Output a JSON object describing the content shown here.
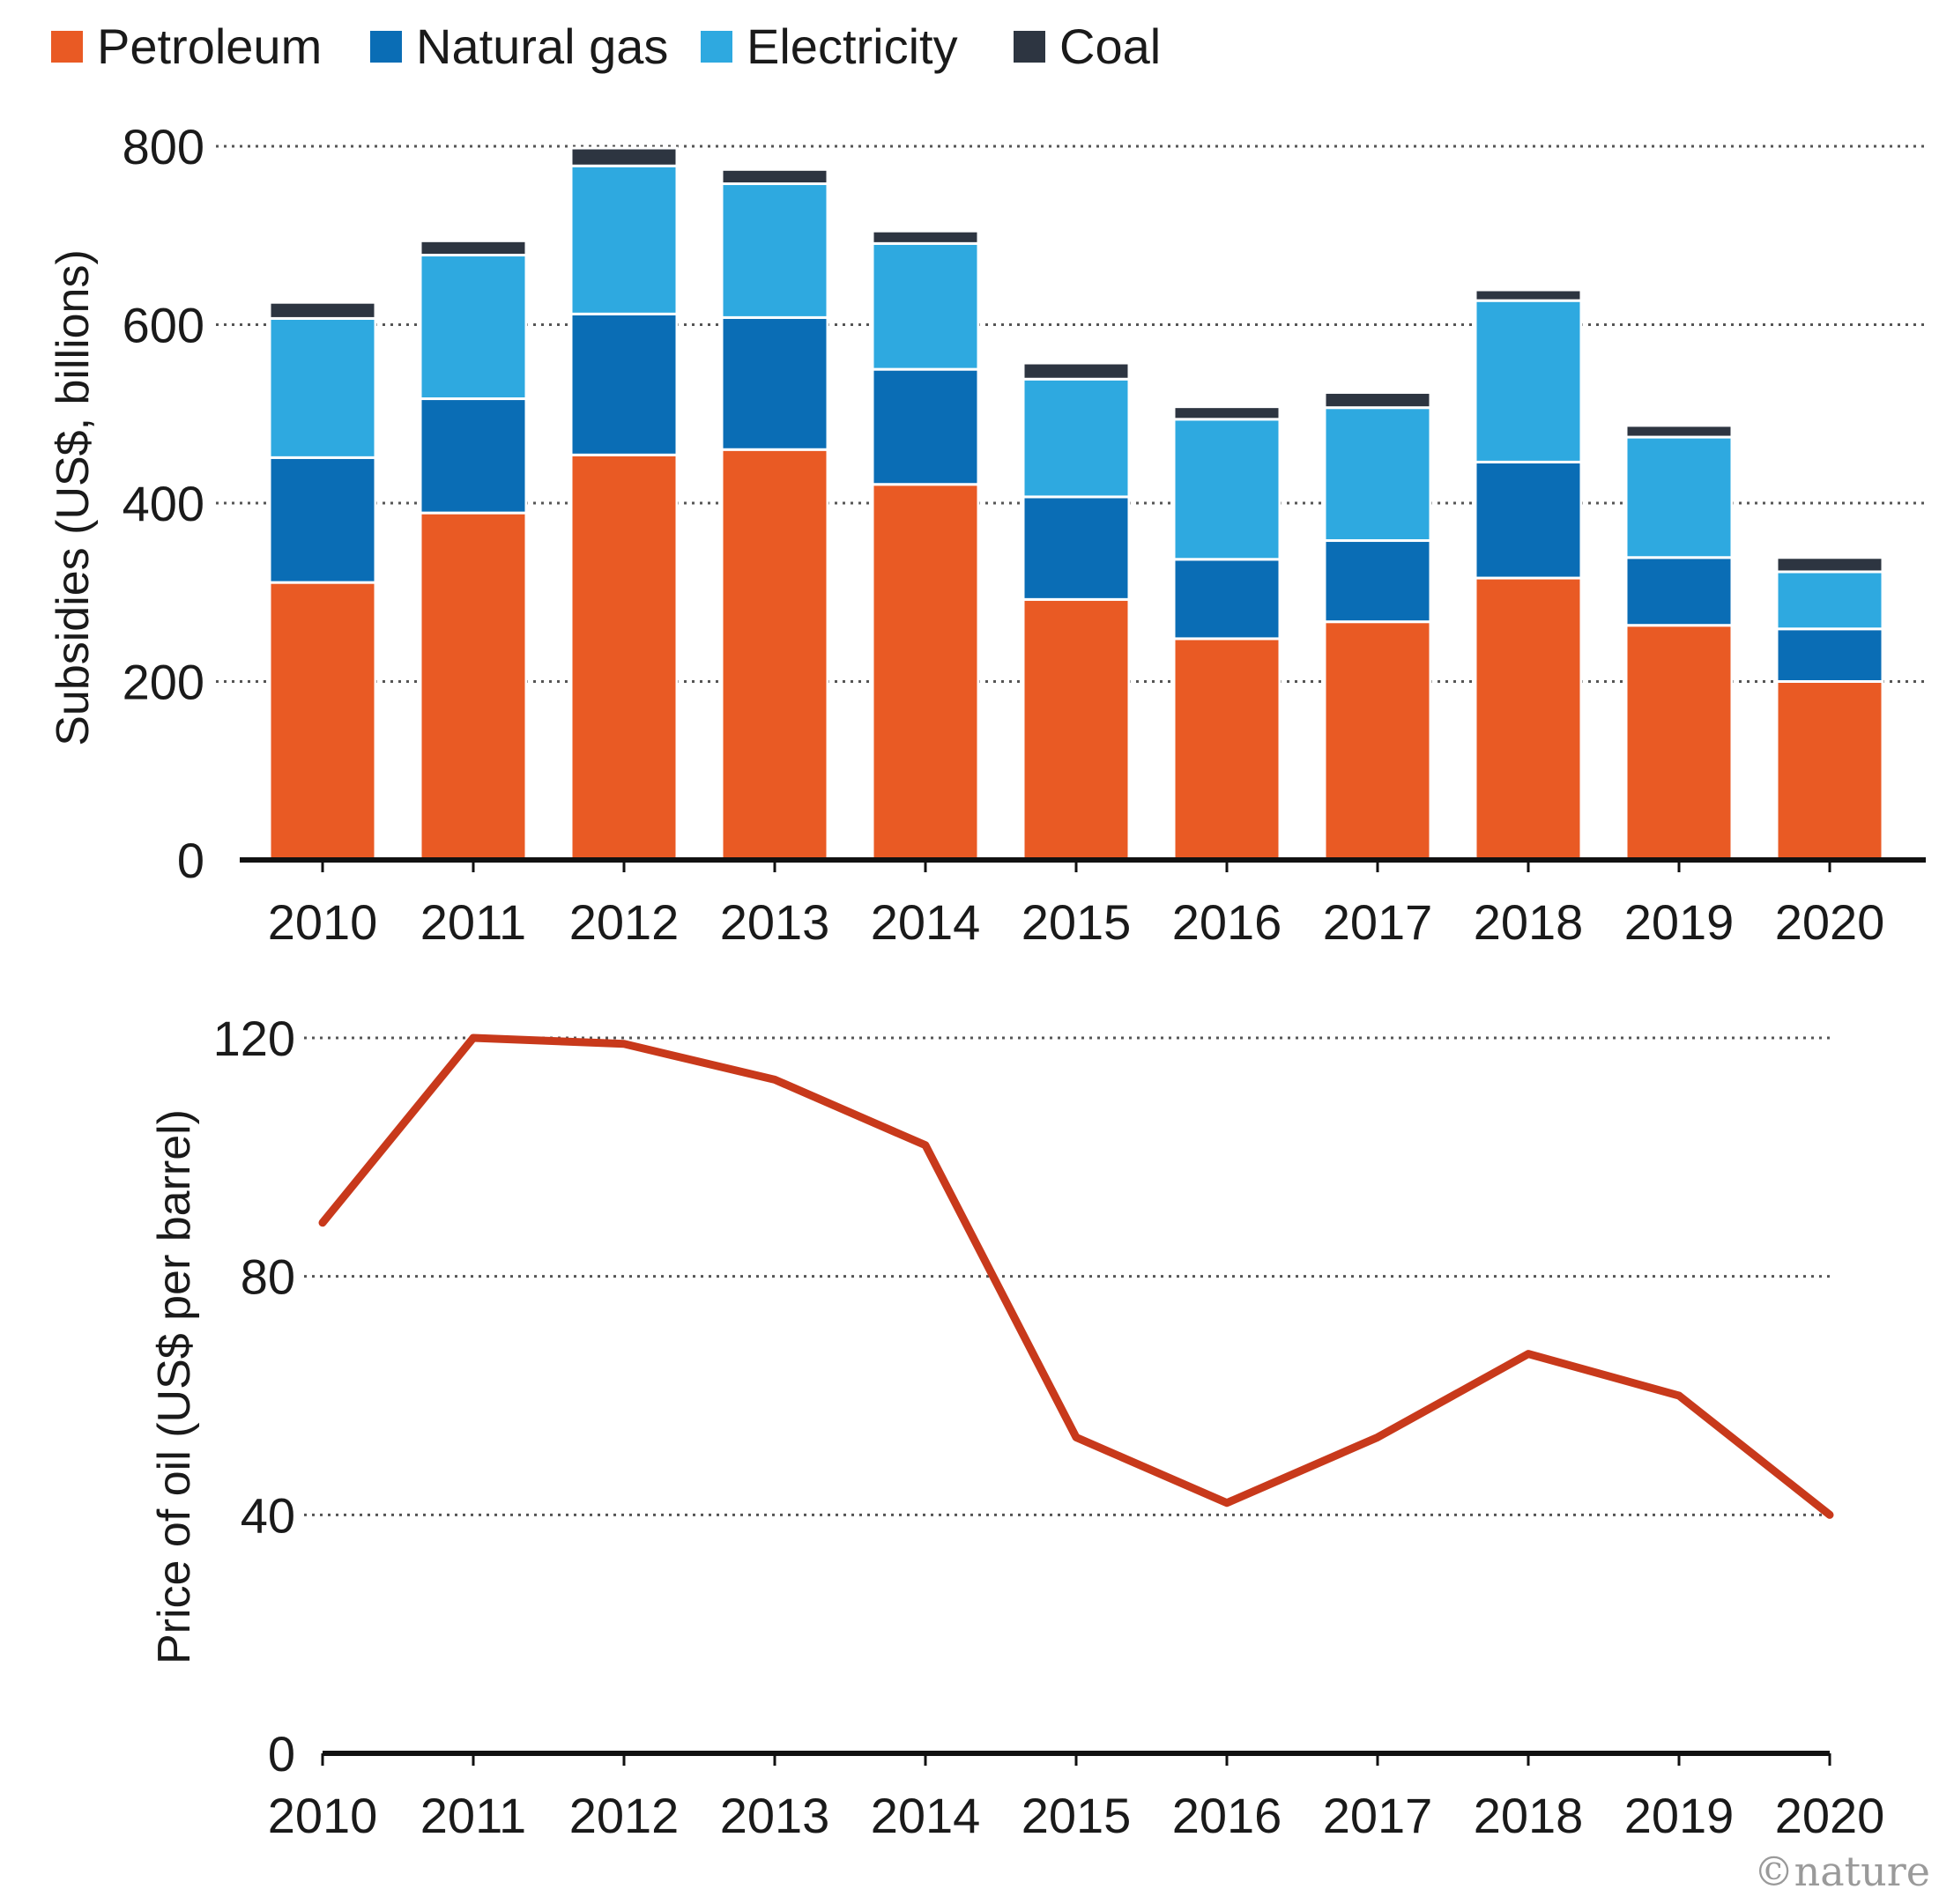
{
  "chart_data": [
    {
      "type": "bar",
      "stacked": true,
      "categories": [
        "2010",
        "2011",
        "2012",
        "2013",
        "2014",
        "2015",
        "2016",
        "2017",
        "2018",
        "2019",
        "2020"
      ],
      "series": [
        {
          "name": "Petroleum",
          "color": "#e95a24",
          "values": [
            311,
            389,
            454,
            460,
            421,
            292,
            248,
            267,
            316,
            263,
            200
          ]
        },
        {
          "name": "Natural gas",
          "color": "#0a6db5",
          "values": [
            140,
            128,
            158,
            148,
            129,
            115,
            89,
            91,
            130,
            76,
            59
          ]
        },
        {
          "name": "Electricity",
          "color": "#2ea9e0",
          "values": [
            156,
            161,
            166,
            150,
            141,
            132,
            157,
            149,
            181,
            135,
            64
          ]
        },
        {
          "name": "Coal",
          "color": "#2d3541",
          "values": [
            18,
            16,
            20,
            16,
            14,
            18,
            14,
            17,
            12,
            13,
            16
          ]
        }
      ],
      "ylabel": "Subsidies (US$, billions)",
      "ylim": [
        0,
        800
      ],
      "yticks": [
        0,
        200,
        400,
        600,
        800
      ],
      "grid": true,
      "legend": "top-left"
    },
    {
      "type": "line",
      "x": [
        "2010",
        "2011",
        "2012",
        "2013",
        "2014",
        "2015",
        "2016",
        "2017",
        "2018",
        "2019",
        "2020"
      ],
      "series": [
        {
          "color": "#c8391b",
          "values": [
            89,
            120,
            119,
            113,
            102,
            53,
            42,
            53,
            67,
            60,
            40
          ]
        }
      ],
      "ylabel": "Price of oil (US$ per barrel)",
      "ylim": [
        0,
        120
      ],
      "yticks": [
        0,
        40,
        80,
        120
      ],
      "grid": true
    }
  ],
  "credit": "©nature"
}
